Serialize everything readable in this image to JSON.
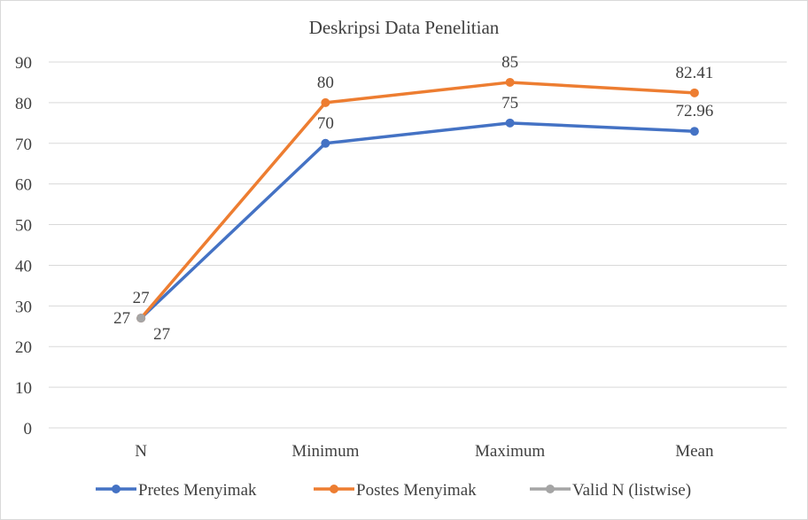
{
  "chart_data": {
    "type": "line",
    "title": "Deskripsi Data Penelitian",
    "xlabel": "",
    "ylabel": "",
    "categories": [
      "N",
      "Minimum",
      "Maximum",
      "Mean"
    ],
    "ylim": [
      0,
      90
    ],
    "yticks": [
      0,
      10,
      20,
      30,
      40,
      50,
      60,
      70,
      80,
      90
    ],
    "grid": true,
    "legend_position": "bottom",
    "series": [
      {
        "name": "Pretes Menyimak",
        "color": "#4472c4",
        "values": [
          27,
          70,
          75,
          72.96
        ],
        "labels": [
          "27",
          "70",
          "75",
          "72.96"
        ]
      },
      {
        "name": "Postes Menyimak",
        "color": "#ed7d31",
        "values": [
          27,
          80,
          85,
          82.41
        ],
        "labels": [
          "27",
          "80",
          "85",
          "82.41"
        ]
      },
      {
        "name": "Valid N (listwise)",
        "color": "#a5a5a5",
        "values": [
          27,
          null,
          null,
          null
        ],
        "labels": [
          "27",
          null,
          null,
          null
        ]
      }
    ]
  }
}
